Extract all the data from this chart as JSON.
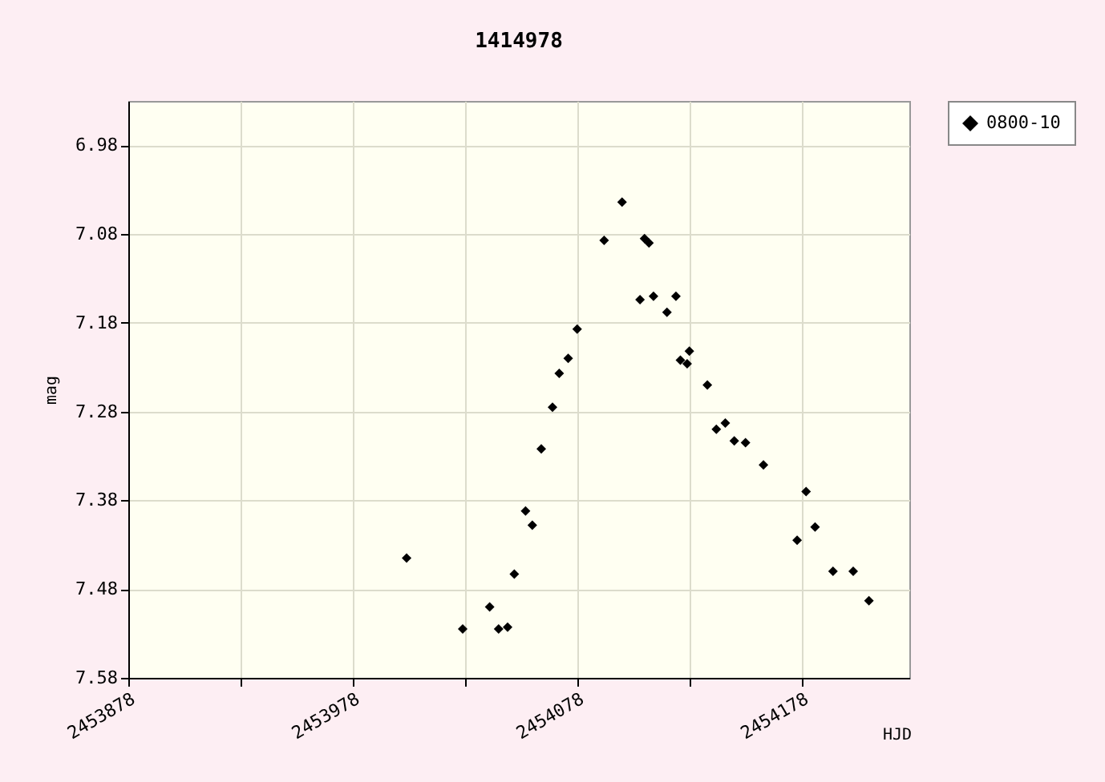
{
  "chart_data": {
    "type": "scatter",
    "title": "1414978",
    "xlabel": "HJD",
    "ylabel": "mag",
    "x": [
      2454002,
      2454027,
      2454039,
      2454043,
      2454047,
      2454050,
      2454055,
      2454058,
      2454062,
      2454067,
      2454070,
      2454074,
      2454078,
      2454090,
      2454098,
      2454106,
      2454108,
      2454110,
      2454112,
      2454118,
      2454122,
      2454124,
      2454127,
      2454128,
      2454136,
      2454140,
      2454144,
      2454148,
      2454153,
      2454161,
      2454176,
      2454180,
      2454184,
      2454192,
      2454201,
      2454208
    ],
    "series": [
      {
        "name": "0800-10",
        "color": "#000000",
        "values": [
          7.445,
          7.525,
          7.5,
          7.525,
          7.523,
          7.463,
          7.392,
          7.408,
          7.322,
          7.275,
          7.237,
          7.22,
          7.187,
          7.087,
          7.044,
          7.154,
          7.085,
          7.09,
          7.15,
          7.168,
          7.15,
          7.222,
          7.226,
          7.212,
          7.25,
          7.3,
          7.293,
          7.313,
          7.315,
          7.34,
          7.425,
          7.37,
          7.41,
          7.46,
          7.46,
          7.493
        ]
      }
    ],
    "xlim": [
      2453878,
      2454226
    ],
    "xticks": [
      2453878,
      {
        "value": 2453928,
        "label": null
      },
      2453978,
      {
        "value": 2454028,
        "label": null
      },
      2454078,
      {
        "value": 2454128,
        "label": null
      },
      2454178
    ],
    "ylim": [
      7.58,
      6.93
    ],
    "yticks": [
      6.98,
      7.08,
      7.18,
      7.28,
      7.38,
      7.48,
      7.58
    ],
    "grid": true,
    "legend": "right",
    "marker": "diamond"
  }
}
